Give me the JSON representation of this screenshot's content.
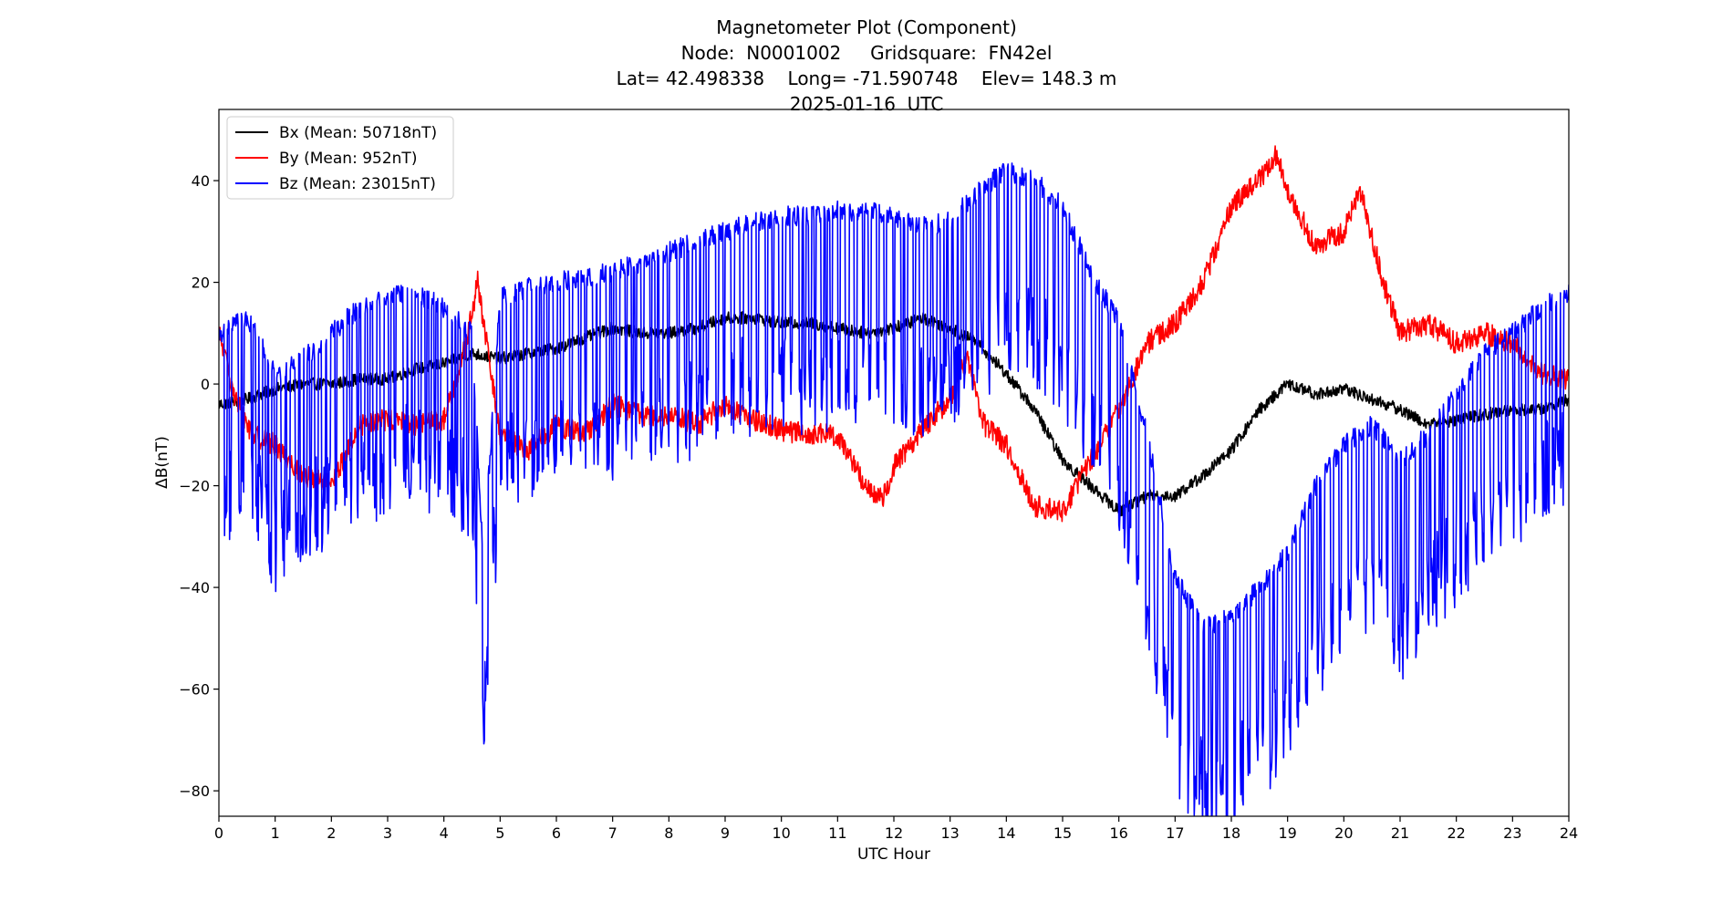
{
  "chart_data": {
    "type": "line",
    "title_lines": [
      "Magnetometer Plot (Component)",
      "Node:  N0001002     Gridsquare:  FN42el",
      "Lat= 42.498338    Long= -71.590748    Elev= 148.3 m",
      "2025-01-16  UTC"
    ],
    "xlabel": "UTC Hour",
    "ylabel": "ΔB(nT)",
    "xlim": [
      0,
      24
    ],
    "ylim": [
      -85,
      54
    ],
    "xticks": [
      0,
      1,
      2,
      3,
      4,
      5,
      6,
      7,
      8,
      9,
      10,
      11,
      12,
      13,
      14,
      15,
      16,
      17,
      18,
      19,
      20,
      21,
      22,
      23,
      24
    ],
    "xtick_labels": [
      "0",
      "1",
      "2",
      "3",
      "4",
      "5",
      "6",
      "7",
      "8",
      "9",
      "10",
      "11",
      "12",
      "13",
      "14",
      "15",
      "16",
      "17",
      "18",
      "19",
      "20",
      "21",
      "22",
      "23",
      "24"
    ],
    "yticks": [
      -80,
      -60,
      -40,
      -20,
      0,
      20,
      40
    ],
    "ytick_labels": [
      "−80",
      "−60",
      "−40",
      "−20",
      "0",
      "20",
      "40"
    ],
    "grid": false,
    "legend_position": "top-left",
    "series": [
      {
        "name": "Bx",
        "label": "Bx (Mean: 50718nT)",
        "color": "#000000",
        "x": [
          0,
          0.5,
          1,
          1.5,
          2,
          2.5,
          3,
          3.5,
          4,
          4.5,
          5,
          5.5,
          6,
          6.5,
          7,
          7.5,
          8,
          8.5,
          9,
          9.5,
          10,
          10.5,
          11,
          11.5,
          12,
          12.5,
          13,
          13.5,
          14,
          14.5,
          15,
          15.5,
          16,
          16.5,
          17,
          17.5,
          18,
          18.5,
          19,
          19.5,
          20,
          20.5,
          21,
          21.5,
          22,
          22.5,
          23,
          23.5,
          24
        ],
        "values": [
          -4,
          -3,
          -1,
          0,
          0,
          1,
          1,
          3,
          4,
          6,
          5,
          6,
          7,
          9,
          11,
          10,
          10,
          11,
          13,
          13,
          12,
          12,
          11,
          10,
          11,
          13,
          11,
          8,
          2,
          -5,
          -15,
          -20,
          -25,
          -22,
          -22,
          -18,
          -13,
          -5,
          0,
          -2,
          -1,
          -3,
          -5,
          -8,
          -7,
          -6,
          -5,
          -5,
          -3
        ],
        "noise": 1.2,
        "spike_every": 0,
        "spike_depth": 0
      },
      {
        "name": "By",
        "label": "By (Mean: 952nT)",
        "color": "#ff0000",
        "x": [
          0,
          0.3,
          0.6,
          1,
          1.5,
          2,
          2.5,
          3,
          3.5,
          4,
          4.4,
          4.6,
          5,
          5.5,
          6,
          6.5,
          7,
          7.5,
          8,
          8.5,
          9,
          9.5,
          10,
          10.5,
          11,
          11.5,
          11.8,
          12,
          12.5,
          13,
          13.3,
          13.6,
          14,
          14.5,
          15,
          15.5,
          16,
          16.5,
          17,
          17.5,
          18,
          18.5,
          18.8,
          19,
          19.5,
          20,
          20.3,
          20.7,
          21,
          21.5,
          22,
          22.5,
          23,
          23.5,
          24
        ],
        "values": [
          10,
          -3,
          -10,
          -12,
          -18,
          -20,
          -8,
          -7,
          -8,
          -7,
          8,
          20,
          -10,
          -13,
          -8,
          -10,
          -4,
          -6,
          -6,
          -8,
          -4,
          -7,
          -9,
          -10,
          -10,
          -20,
          -23,
          -16,
          -9,
          -3,
          6,
          -8,
          -12,
          -24,
          -25,
          -15,
          -5,
          8,
          12,
          20,
          35,
          40,
          45,
          38,
          27,
          30,
          38,
          20,
          10,
          12,
          8,
          10,
          8,
          2,
          1
        ],
        "noise": 2.2,
        "spike_every": 0,
        "spike_depth": 0
      },
      {
        "name": "Bz",
        "label": "Bz (Mean: 23015nT)",
        "color": "#0000ff",
        "x": [
          0,
          0.5,
          1,
          1.5,
          2,
          2.5,
          3,
          3.5,
          4,
          4.5,
          4.7,
          5,
          5.5,
          6,
          6.5,
          7,
          7.5,
          8,
          8.5,
          9,
          9.5,
          10,
          10.5,
          11,
          11.5,
          12,
          12.5,
          13,
          13.5,
          14,
          14.5,
          15,
          15.5,
          16,
          16.5,
          17,
          17.5,
          18,
          18.5,
          19,
          19.5,
          20,
          20.5,
          21,
          21.5,
          22,
          22.5,
          23,
          23.5,
          24
        ],
        "values": [
          10,
          13,
          2,
          5,
          10,
          15,
          17,
          18,
          15,
          10,
          -35,
          17,
          19,
          20,
          21,
          22,
          24,
          26,
          28,
          30,
          32,
          33,
          33,
          34,
          34,
          33,
          31,
          32,
          38,
          42,
          40,
          35,
          22,
          12,
          -10,
          -38,
          -48,
          -46,
          -40,
          -33,
          -20,
          -12,
          -8,
          -15,
          -10,
          -2,
          6,
          10,
          15,
          18
        ],
        "noise": 2.0,
        "spike_every": 0.11,
        "spike_depth": 38
      }
    ]
  }
}
